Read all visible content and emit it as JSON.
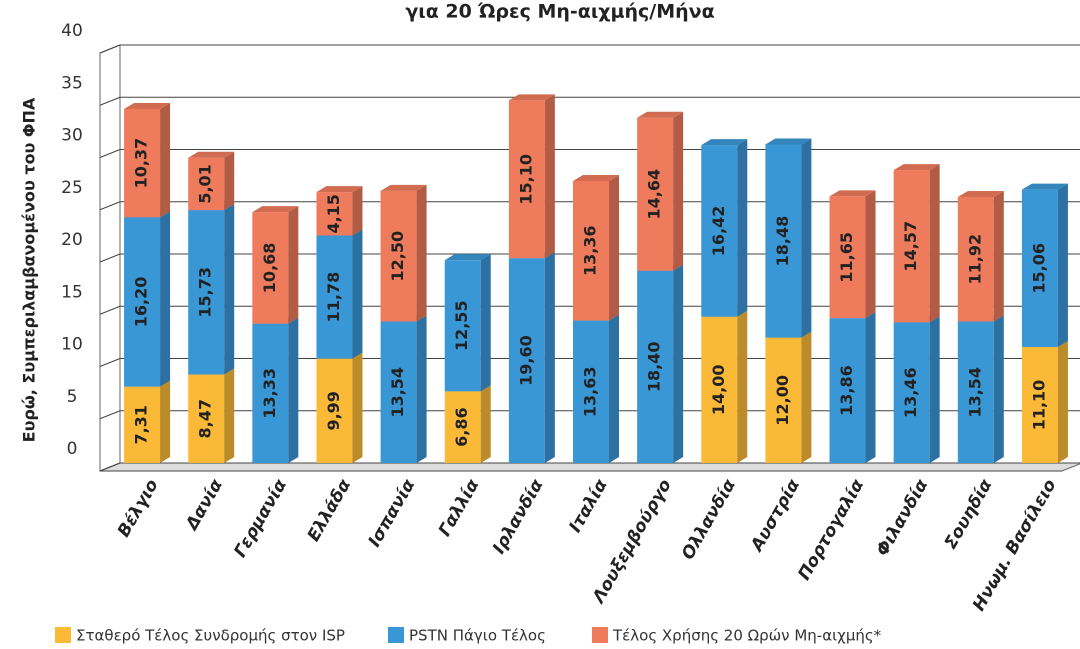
{
  "chart_data": {
    "type": "bar3d",
    "title": "για 20 Ώρες Μη-αιχμής/Μήνα",
    "y_label": "Ευρώ, Συμπεριλαμβανομένου του ΦΠΑ",
    "categories": [
      "Βέλγιο",
      "Δανία",
      "Γερμανία",
      "Ελλάδα",
      "Ισπανία",
      "Γαλλία",
      "Ιρλανδία",
      "Ιταλία",
      "Λουξεμβούργο",
      "Ολλανδία",
      "Αυστρία",
      "Πορτογαλία",
      "Φιλανδία",
      "Σουηδία",
      "Ηνωμ. Βασίλειο"
    ],
    "series": [
      {
        "name": "Σταθερό Τέλος Συνδρομής στον ISP",
        "color": "#fbb938",
        "values": [
          7.31,
          8.47,
          null,
          9.99,
          null,
          6.86,
          null,
          null,
          null,
          14.0,
          12.0,
          null,
          null,
          null,
          11.1
        ],
        "value_labels": [
          "7,31",
          "8,47",
          null,
          "9,99",
          null,
          "6,86",
          null,
          null,
          null,
          "14,00",
          "12,00",
          null,
          null,
          null,
          "11,10"
        ]
      },
      {
        "name": "PSTN Πάγιο Τέλος",
        "color": "#3a97d6",
        "values": [
          16.2,
          15.73,
          13.33,
          11.78,
          13.54,
          12.55,
          19.6,
          13.63,
          18.4,
          16.42,
          18.48,
          13.86,
          13.46,
          13.54,
          15.06
        ],
        "value_labels": [
          "16,20",
          "15,73",
          "13,33",
          "11,78",
          "13,54",
          "12,55",
          "19,60",
          "13,63",
          "18,40",
          "16,42",
          "18,48",
          "13,86",
          "13,46",
          "13,54",
          "15,06"
        ]
      },
      {
        "name": "Τέλος Χρήσης 20 Ωρών Μη-αιχμής*",
        "color": "#ee7b5c",
        "values": [
          10.37,
          5.01,
          10.68,
          4.15,
          12.5,
          null,
          15.1,
          13.36,
          14.64,
          null,
          null,
          11.65,
          14.57,
          11.92,
          null
        ],
        "value_labels": [
          "10,37",
          "5,01",
          "10,68",
          "4,15",
          "12,50",
          null,
          "15,10",
          "13,36",
          "14,64",
          null,
          null,
          "11,65",
          "14,57",
          "11,92",
          null
        ]
      }
    ],
    "ylim": [
      0,
      40
    ],
    "yticks": [
      0,
      5,
      10,
      15,
      20,
      25,
      30,
      35,
      40
    ],
    "grid": true
  }
}
